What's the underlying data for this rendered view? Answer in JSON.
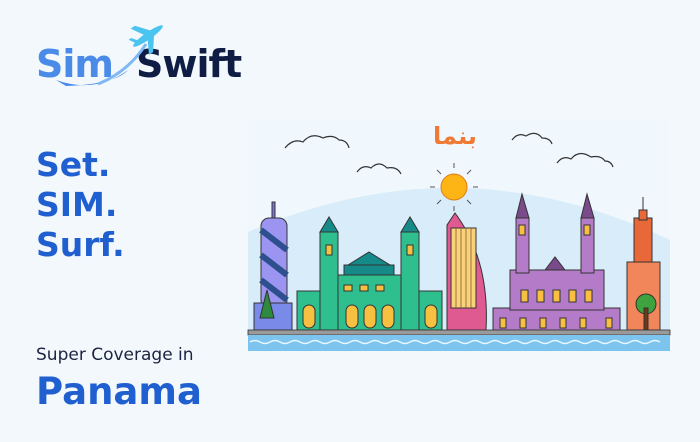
{
  "logo": {
    "part1": "Sim",
    "part2": "Swift",
    "icon": "airplane-icon"
  },
  "tagline": [
    "Set.",
    "SIM.",
    "Surf."
  ],
  "coverage": {
    "label": "Super Coverage in",
    "country": "Panama"
  },
  "illustration": {
    "caption": "بنما"
  },
  "colors": {
    "brand_blue": "#1f5fcf",
    "logo_light": "#4a8be8",
    "logo_dark": "#0f1d45",
    "caption_orange": "#f07a35"
  }
}
